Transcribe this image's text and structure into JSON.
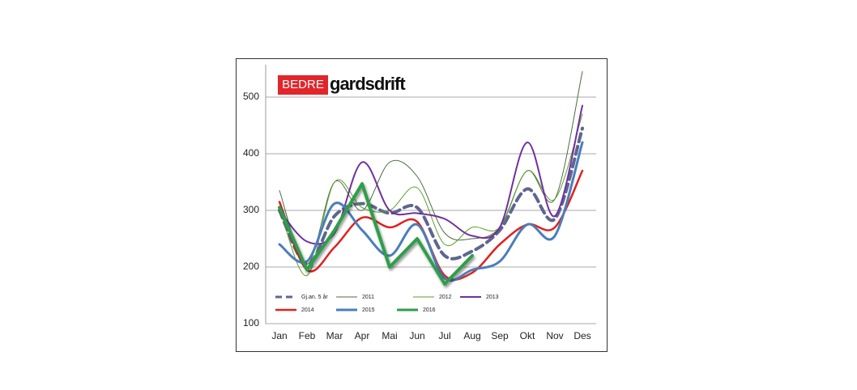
{
  "logo": {
    "left": "BEDRE",
    "right": "gardsdrift"
  },
  "chart_data": {
    "type": "line",
    "categories": [
      "Jan",
      "Feb",
      "Mar",
      "Apr",
      "Mai",
      "Jun",
      "Jul",
      "Aug",
      "Sep",
      "Okt",
      "Nov",
      "Des"
    ],
    "ylim": [
      100,
      550
    ],
    "yticks": [
      100,
      200,
      300,
      400,
      500
    ],
    "grid": true,
    "series": [
      {
        "name": "Gj.an. 5 år",
        "color": "#5f6590",
        "line_width": 4,
        "dashed": true,
        "smooth": true,
        "values": [
          300,
          205,
          290,
          312,
          295,
          305,
          220,
          228,
          265,
          338,
          285,
          445
        ]
      },
      {
        "name": "2011",
        "color": "#4f6b3f",
        "line_width": 1,
        "dashed": false,
        "smooth": true,
        "values": [
          335,
          205,
          350,
          300,
          385,
          360,
          260,
          250,
          270,
          370,
          320,
          545
        ]
      },
      {
        "name": "2012",
        "color": "#5aa02c",
        "line_width": 1,
        "dashed": false,
        "smooth": true,
        "values": [
          305,
          185,
          350,
          305,
          300,
          340,
          240,
          270,
          270,
          370,
          320,
          470
        ]
      },
      {
        "name": "2013",
        "color": "#7030a0",
        "line_width": 2,
        "dashed": false,
        "smooth": true,
        "values": [
          300,
          245,
          260,
          385,
          300,
          295,
          285,
          255,
          270,
          420,
          290,
          485
        ]
      },
      {
        "name": "2014",
        "color": "#e02020",
        "line_width": 2.5,
        "dashed": false,
        "smooth": true,
        "values": [
          315,
          195,
          235,
          287,
          270,
          280,
          185,
          190,
          240,
          275,
          270,
          370
        ]
      },
      {
        "name": "2015",
        "color": "#4a7ebb",
        "line_width": 3,
        "dashed": false,
        "smooth": true,
        "values": [
          240,
          210,
          312,
          265,
          220,
          275,
          180,
          195,
          210,
          275,
          255,
          420
        ]
      },
      {
        "name": "2016",
        "color": "#2e9e4a",
        "line_width": 4,
        "dashed": false,
        "smooth": false,
        "values": [
          305,
          195,
          265,
          347,
          200,
          250,
          170,
          220,
          null,
          null,
          null,
          null
        ]
      }
    ]
  }
}
